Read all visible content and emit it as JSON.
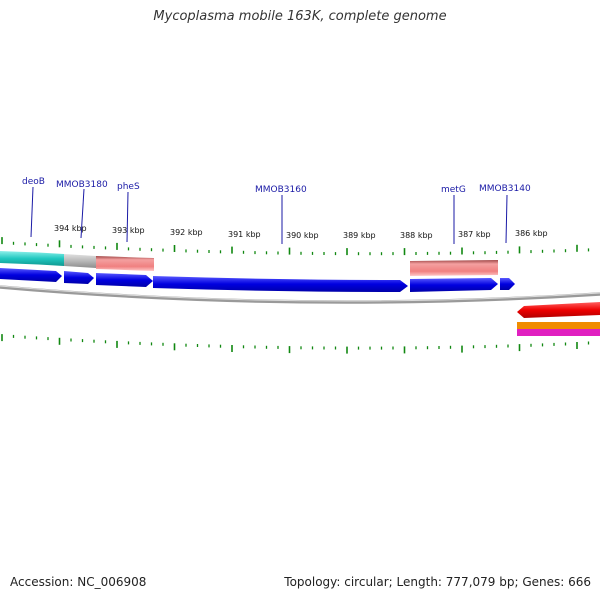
{
  "title": "Mycoplasma mobile 163K, complete genome",
  "footer": {
    "accession": "Accession: NC_006908",
    "summary": "Topology: circular; Length: 777,079 bp; Genes: 666"
  },
  "gene_labels": [
    "deoB",
    "MMOB3180",
    "pheS",
    "MMOB3160",
    "metG",
    "MMOB3140"
  ],
  "kbp_labels": [
    "394 kbp",
    "393 kbp",
    "392 kbp",
    "391 kbp",
    "390 kbp",
    "389 kbp",
    "388 kbp",
    "387 kbp",
    "386 kbp"
  ],
  "colors": {
    "gene_blue": "#0000e0",
    "gene_cyan": "#20c8c0",
    "gene_grey": "#b8b8b8",
    "gene_salmon": "#f08080",
    "gene_red": "#ee0000",
    "gene_orange": "#f08c00",
    "gene_magenta": "#e020c0",
    "tick_green": "#118811",
    "backbone_grey": "#888888",
    "label_blue": "#1a1aa6"
  }
}
